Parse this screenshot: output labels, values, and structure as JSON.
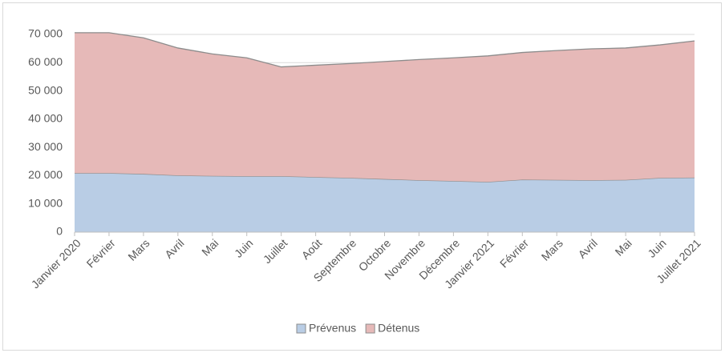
{
  "chart_data": {
    "type": "stacked_area",
    "categories": [
      "Janvier 2020",
      "Février",
      "Mars",
      "Avril",
      "Mai",
      "Juin",
      "Juillet",
      "Août",
      "Septembre",
      "Octobre",
      "Novembre",
      "Décembre",
      "Janvier 2021",
      "Février",
      "Mars",
      "Avril",
      "Mai",
      "Juin",
      "Juillet 2021"
    ],
    "series": [
      {
        "name": "Prévenus",
        "color": "#b9cde5",
        "values": [
          20900,
          20900,
          20600,
          20100,
          19900,
          19800,
          19800,
          19500,
          19200,
          18800,
          18400,
          18100,
          17800,
          18600,
          18500,
          18400,
          18500,
          19200,
          19300
        ]
      },
      {
        "name": "Détenus",
        "color": "#e6b9b8",
        "values": [
          49700,
          49700,
          48200,
          45100,
          43200,
          41900,
          38700,
          39600,
          40500,
          41600,
          42700,
          43600,
          44600,
          45000,
          45800,
          46500,
          46700,
          47100,
          48400
        ]
      }
    ],
    "ylim": [
      0,
      70000
    ],
    "yticks": [
      0,
      {
        "value": 10000,
        "label": "10 000"
      },
      {
        "value": 20000,
        "label": "20 000"
      },
      {
        "value": 30000,
        "label": "30 000"
      },
      {
        "value": 40000,
        "label": "40 000"
      },
      {
        "value": 50000,
        "label": "50 000"
      },
      {
        "value": 60000,
        "label": "60 000"
      },
      {
        "value": 70000,
        "label": "70 000"
      }
    ],
    "grid": true,
    "legend": "bottom"
  }
}
